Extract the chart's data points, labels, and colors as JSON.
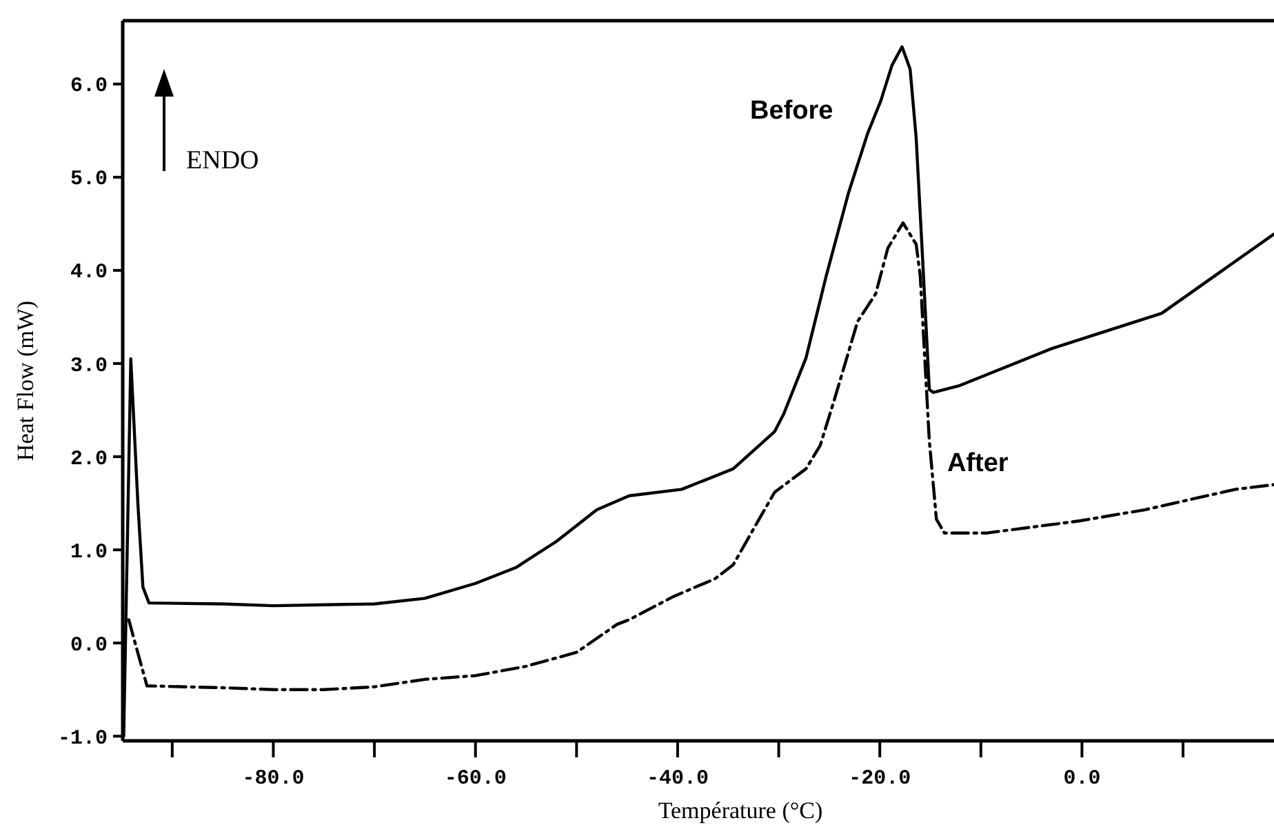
{
  "chart_data": {
    "type": "line",
    "xlabel": "Température (°C)",
    "ylabel": "Heat Flow (mW)",
    "xlim": [
      -94.9,
      19.0
    ],
    "ylim": [
      -1.05,
      6.68
    ],
    "xticks": [
      {
        "value": -90,
        "label": null
      },
      {
        "value": -80,
        "label": "-80.0"
      },
      {
        "value": -70,
        "label": null
      },
      {
        "value": -60,
        "label": "-60.0"
      },
      {
        "value": -50,
        "label": null
      },
      {
        "value": -40,
        "label": "-40.0"
      },
      {
        "value": -30,
        "label": null
      },
      {
        "value": -20,
        "label": "-20.0"
      },
      {
        "value": -10,
        "label": null
      },
      {
        "value": 0,
        "label": "0.0"
      },
      {
        "value": 10,
        "label": null
      }
    ],
    "yticks": [
      {
        "value": -1,
        "label": "-1.0"
      },
      {
        "value": 0,
        "label": "0.0"
      },
      {
        "value": 1,
        "label": "1.0"
      },
      {
        "value": 2,
        "label": "2.0"
      },
      {
        "value": 3,
        "label": "3.0"
      },
      {
        "value": 4,
        "label": "4.0"
      },
      {
        "value": 5,
        "label": "5.0"
      },
      {
        "value": 6,
        "label": "6.0"
      }
    ],
    "grid": false,
    "legend": false,
    "marker": "none",
    "annotations": [
      "ENDO"
    ],
    "series": [
      {
        "name": "Before",
        "color": "#000000",
        "line_style": "solid",
        "x": [
          -94.8,
          -94.1,
          -93.4,
          -92.9,
          -92.3,
          -85,
          -80,
          -75,
          -70,
          -65,
          -60,
          -56,
          -52,
          -48,
          -44.8,
          -39.6,
          -34.5,
          -30.4,
          -29.5,
          -27.3,
          -25.3,
          -23.1,
          -21.2,
          -19.9,
          -18.8,
          -17.8,
          -17.0,
          -16.4,
          -15.8,
          -15.1,
          -14.7,
          -12.2,
          -3.0,
          7.9,
          19.0
        ],
        "values": [
          -1.0,
          3.05,
          1.5,
          0.6,
          0.43,
          0.42,
          0.4,
          0.41,
          0.42,
          0.48,
          0.64,
          0.81,
          1.09,
          1.43,
          1.58,
          1.65,
          1.87,
          2.27,
          2.46,
          3.06,
          3.94,
          4.83,
          5.47,
          5.82,
          6.2,
          6.4,
          6.16,
          5.42,
          4.2,
          2.72,
          2.69,
          2.76,
          3.16,
          3.54,
          4.39
        ]
      },
      {
        "name": "After",
        "color": "#000000",
        "line_style": "dashed",
        "x": [
          -94.3,
          -93.8,
          -92.5,
          -85,
          -80,
          -75,
          -70,
          -65,
          -60,
          -55,
          -50,
          -46,
          -44.8,
          -40.4,
          -36.3,
          -34.5,
          -32.2,
          -30.4,
          -27.3,
          -25.9,
          -24.5,
          -22.2,
          -20.4,
          -19.2,
          -17.7,
          -16.4,
          -16.0,
          -15.1,
          -14.4,
          -13.6,
          -9.5,
          -0.3,
          6.2,
          15.2,
          19.0
        ],
        "values": [
          0.25,
          0.05,
          -0.46,
          -0.48,
          -0.5,
          -0.5,
          -0.47,
          -0.39,
          -0.35,
          -0.25,
          -0.1,
          0.2,
          0.25,
          0.5,
          0.69,
          0.84,
          1.28,
          1.62,
          1.87,
          2.12,
          2.61,
          3.45,
          3.75,
          4.24,
          4.51,
          4.28,
          3.94,
          2.17,
          1.33,
          1.18,
          1.18,
          1.31,
          1.43,
          1.65,
          1.7
        ]
      }
    ]
  }
}
